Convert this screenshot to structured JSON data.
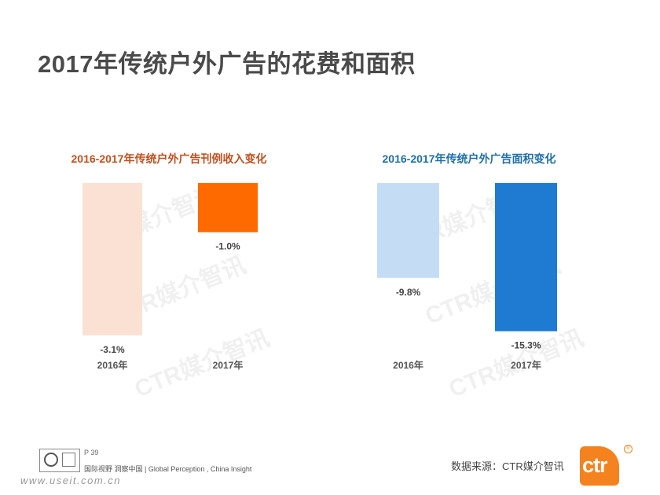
{
  "page": {
    "title": "2017年传统户外广告的花费和面积"
  },
  "chart_data": [
    {
      "type": "bar",
      "title": "2016-2017年传统户外广告刊例收入变化",
      "title_color": "#c0501e",
      "categories": [
        "2016年",
        "2017年"
      ],
      "values": [
        -3.1,
        -1.0
      ],
      "value_labels": [
        "-3.1%",
        "-1.0%"
      ],
      "colors": [
        "#fbe1d4",
        "#ff6a00"
      ],
      "ylim": [
        -3.2,
        0
      ],
      "xlabel": "",
      "ylabel": "",
      "grid": false
    },
    {
      "type": "bar",
      "title": "2016-2017年传统户外广告面积变化",
      "title_color": "#1f6fa8",
      "categories": [
        "2016年",
        "2017年"
      ],
      "values": [
        -9.8,
        -15.3
      ],
      "value_labels": [
        "-9.8%",
        "-15.3%"
      ],
      "colors": [
        "#c5ddf4",
        "#1f7ad1"
      ],
      "ylim": [
        -15.5,
        0
      ],
      "xlabel": "",
      "ylabel": "",
      "grid": false
    }
  ],
  "watermark": "CTR媒介智讯",
  "footer": {
    "page_number": "P 39",
    "tagline": "国际视野  洞察中国 |  Global Perception , China Insight",
    "source": "数据来源：CTR媒介智讯",
    "logo_text": "ctr",
    "registered_mark": "®",
    "url_text": "www.useit.com.cn"
  }
}
